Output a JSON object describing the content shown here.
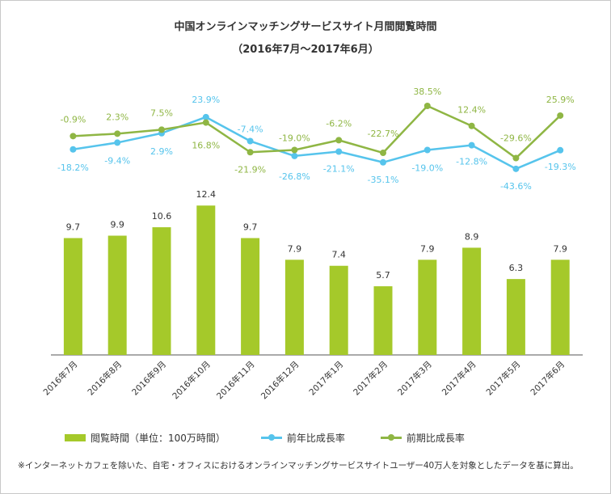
{
  "header": {
    "title_line1": "中国オンラインマッチングサービスサイト月間閲覧時間",
    "title_line2": "（2016年7月～2017年6月）"
  },
  "colors": {
    "bar": "#a5c92a",
    "yoy_line": "#56c4ec",
    "mom_line": "#8fb644",
    "bar_label": "#333333"
  },
  "chart_data": {
    "type": "bar",
    "title": "中国オンラインマッチングサービスサイト月間閲覧時間（2016年7月～2017年6月）",
    "categories": [
      "2016年7月",
      "2016年8月",
      "2016年9月",
      "2016年10月",
      "2016年11月",
      "2016年12月",
      "2017年1月",
      "2017年2月",
      "2017年3月",
      "2017年4月",
      "2017年5月",
      "2017年6月"
    ],
    "series": [
      {
        "name": "閲覧時間（単位：100万時間）",
        "type": "bar",
        "values": [
          9.7,
          9.9,
          10.6,
          12.4,
          9.7,
          7.9,
          7.4,
          5.7,
          7.9,
          8.9,
          6.3,
          7.9
        ],
        "labels": [
          "9.7",
          "9.9",
          "10.6",
          "12.4",
          "9.7",
          "7.9",
          "7.4",
          "5.7",
          "7.9",
          "8.9",
          "6.3",
          "7.9"
        ]
      },
      {
        "name": "前年比成長率",
        "type": "line",
        "values": [
          -18.2,
          -9.4,
          2.9,
          23.9,
          -7.4,
          -26.8,
          -21.1,
          -35.1,
          -19.0,
          -12.8,
          -43.6,
          -19.3
        ],
        "labels": [
          "-18.2%",
          "-9.4%",
          "2.9%",
          "23.9%",
          "-7.4%",
          "-26.8%",
          "-21.1%",
          "-35.1%",
          "-19.0%",
          "-12.8%",
          "-43.6%",
          "-19.3%"
        ]
      },
      {
        "name": "前期比成長率",
        "type": "line",
        "values": [
          -0.9,
          2.3,
          7.5,
          16.8,
          -21.9,
          -19.0,
          -6.2,
          -22.7,
          38.5,
          12.4,
          -29.6,
          25.9
        ],
        "labels": [
          "-0.9%",
          "2.3%",
          "7.5%",
          "16.8%",
          "-21.9%",
          "-19.0%",
          "-6.2%",
          "-22.7%",
          "38.5%",
          "12.4%",
          "-29.6%",
          "25.9%"
        ]
      }
    ],
    "legend_position": "bottom",
    "grid": false
  },
  "legend": {
    "bar_label": "閲覧時間（単位：100万時間）",
    "yoy_label": "前年比成長率",
    "mom_label": "前期比成長率"
  },
  "footnote": "※インターネットカフェを除いた、自宅・オフィスにおけるオンラインマッチングサービスサイトユーザー40万人を対象としたデータを基に算出。"
}
